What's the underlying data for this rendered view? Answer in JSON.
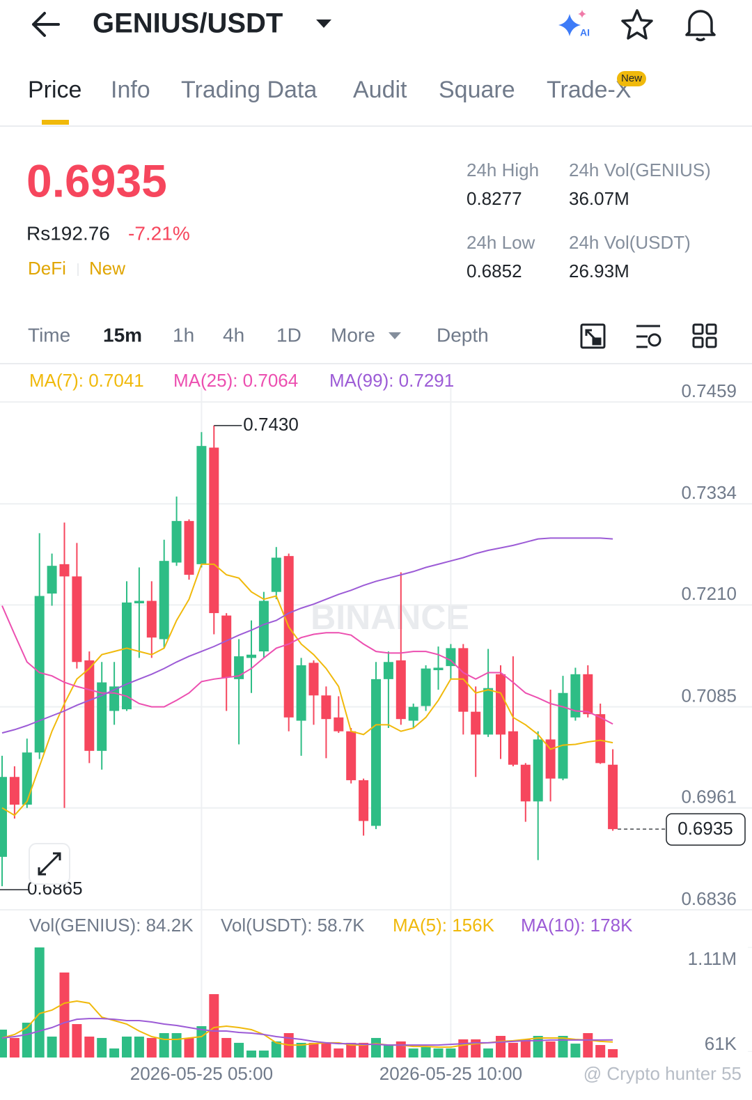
{
  "header": {
    "title": "GENIUS/USDT"
  },
  "tabs": {
    "items": [
      "Price",
      "Info",
      "Trading Data",
      "Audit",
      "Square",
      "Trade-X"
    ],
    "badge": "New"
  },
  "ticker": {
    "price": "0.6935",
    "fiat": "Rs192.76",
    "change": "-7.21%",
    "tags": [
      "DeFi",
      "New"
    ],
    "stats": [
      {
        "label": "24h High",
        "value": "0.8277"
      },
      {
        "label": "24h Vol(GENIUS)",
        "value": "36.07M"
      },
      {
        "label": "24h Low",
        "value": "0.6852"
      },
      {
        "label": "24h Vol(USDT)",
        "value": "26.93M"
      }
    ]
  },
  "intervals": [
    "Time",
    "15m",
    "1h",
    "4h",
    "1D",
    "More",
    "Depth"
  ],
  "chart_data": [
    {
      "type": "candlestick",
      "watermark": "BINANCE",
      "ylim": [
        0.6836,
        0.7459
      ],
      "yticks": [
        0.7459,
        0.7334,
        {
          "value": 0.721,
          "label": "0.7210"
        },
        0.7085,
        0.6961,
        0.6836
      ],
      "grid": true,
      "up_color": "#2ebd85",
      "down_color": "#f6465d",
      "open": [
        0.6901,
        0.6999,
        0.6965,
        0.7029,
        0.7224,
        0.726,
        0.7245,
        0.7142,
        0.7031,
        0.708,
        0.7082,
        0.7212,
        0.7215,
        0.7168,
        0.7262,
        0.7313,
        0.726,
        0.7403,
        0.7197,
        0.7119,
        0.7145,
        0.7153,
        0.7226,
        0.727,
        0.7068,
        0.7139,
        0.7099,
        0.7072,
        0.7055,
        0.6995,
        0.6939,
        0.7119,
        0.7142,
        0.7068,
        0.7086,
        0.713,
        0.7135,
        0.7157,
        0.7079,
        0.7051,
        0.7125,
        0.7055,
        0.7014,
        0.6969,
        0.7045,
        0.6997,
        0.7072,
        0.7125,
        0.7076,
        0.7014
      ],
      "high": [
        0.7025,
        0.7012,
        0.7046,
        0.7298,
        0.7273,
        0.7311,
        0.7286,
        0.7153,
        0.714,
        0.714,
        0.7239,
        0.7256,
        0.7239,
        0.729,
        0.7343,
        0.7315,
        0.7422,
        0.743,
        0.72,
        0.7168,
        0.7191,
        0.7226,
        0.7281,
        0.7273,
        0.7145,
        0.7142,
        0.711,
        0.7098,
        0.7059,
        0.6997,
        0.714,
        0.7153,
        0.725,
        0.7089,
        0.7136,
        0.7159,
        0.7162,
        0.7162,
        0.711,
        0.7156,
        0.7136,
        0.7147,
        0.7016,
        0.7055,
        0.7106,
        0.7123,
        0.7133,
        0.7136,
        0.7089,
        0.7033
      ],
      "low": [
        0.6865,
        0.6948,
        0.6961,
        0.7021,
        0.7209,
        0.6961,
        0.7132,
        0.7016,
        0.7008,
        0.7063,
        0.708,
        0.7145,
        0.7145,
        0.7157,
        0.7258,
        0.7241,
        0.7256,
        0.7174,
        0.708,
        0.7039,
        0.7102,
        0.7145,
        0.7217,
        0.7055,
        0.7025,
        0.7063,
        0.7022,
        0.7053,
        0.6991,
        0.6927,
        0.6935,
        0.7059,
        0.7063,
        0.7059,
        0.708,
        0.7106,
        0.7119,
        0.7051,
        0.6999,
        0.7048,
        0.7021,
        0.7012,
        0.6944,
        0.6897,
        0.6969,
        0.6995,
        0.7068,
        0.7072,
        0.7015,
        0.6933
      ],
      "close": [
        0.6999,
        0.6965,
        0.7029,
        0.7221,
        0.7258,
        0.7245,
        0.714,
        0.7031,
        0.7115,
        0.711,
        0.7213,
        0.7215,
        0.717,
        0.7264,
        0.7313,
        0.7247,
        0.7405,
        0.72,
        0.7121,
        0.7147,
        0.7149,
        0.7215,
        0.7268,
        0.7072,
        0.7136,
        0.7099,
        0.707,
        0.7055,
        0.6995,
        0.6945,
        0.7119,
        0.714,
        0.707,
        0.7085,
        0.7132,
        0.7133,
        0.7157,
        0.7079,
        0.7051,
        0.7108,
        0.7051,
        0.7014,
        0.6969,
        0.7045,
        0.6997,
        0.7102,
        0.7125,
        0.7076,
        0.7016,
        0.6935
      ],
      "series": [
        {
          "name": "MA(7): 0.7041",
          "color": "#f0b90b",
          "values": [
            0.6961,
            0.6952,
            0.6969,
            0.7012,
            0.7055,
            0.7089,
            0.7119,
            0.7132,
            0.7149,
            0.7153,
            0.7157,
            0.7153,
            0.7149,
            0.7157,
            0.7191,
            0.7217,
            0.726,
            0.726,
            0.7247,
            0.7243,
            0.7226,
            0.7217,
            0.7221,
            0.7183,
            0.7162,
            0.7149,
            0.7132,
            0.711,
            0.7055,
            0.7051,
            0.7063,
            0.7063,
            0.7055,
            0.7059,
            0.7072,
            0.7093,
            0.7119,
            0.7119,
            0.7102,
            0.7106,
            0.7102,
            0.7072,
            0.7063,
            0.7051,
            0.7033,
            0.7038,
            0.7039,
            0.7042,
            0.7044,
            0.7041
          ]
        },
        {
          "name": "MA(25): 0.7064",
          "color": "#ec4fb0",
          "values": [
            0.7209,
            0.7174,
            0.714,
            0.7127,
            0.7123,
            0.7115,
            0.711,
            0.7106,
            0.7102,
            0.7102,
            0.7098,
            0.7089,
            0.7085,
            0.7085,
            0.7093,
            0.7102,
            0.7116,
            0.7119,
            0.7121,
            0.7123,
            0.7132,
            0.7145,
            0.7157,
            0.7162,
            0.717,
            0.7174,
            0.7176,
            0.7176,
            0.7173,
            0.7162,
            0.7153,
            0.7151,
            0.7151,
            0.7153,
            0.7153,
            0.7149,
            0.7142,
            0.7127,
            0.7119,
            0.7127,
            0.7127,
            0.7115,
            0.7102,
            0.7096,
            0.7089,
            0.7085,
            0.708,
            0.7079,
            0.7072,
            0.7064
          ]
        },
        {
          "name": "MA(99): 0.7291",
          "color": "#9c5bd6",
          "values": [
            0.7053,
            0.7057,
            0.7062,
            0.7068,
            0.7074,
            0.708,
            0.7087,
            0.7093,
            0.7099,
            0.7106,
            0.7113,
            0.7119,
            0.7125,
            0.7132,
            0.714,
            0.7147,
            0.7153,
            0.7159,
            0.7166,
            0.7173,
            0.7179,
            0.7186,
            0.7191,
            0.72,
            0.7206,
            0.7211,
            0.7217,
            0.7223,
            0.7228,
            0.7234,
            0.7239,
            0.7243,
            0.7247,
            0.7251,
            0.7256,
            0.726,
            0.7264,
            0.7268,
            0.7273,
            0.7277,
            0.728,
            0.7283,
            0.7287,
            0.7291,
            0.7292,
            0.7292,
            0.7292,
            0.7292,
            0.7292,
            0.7291
          ]
        }
      ],
      "max_label": "0.7430",
      "min_label": "0.6865",
      "last_label": "0.6935"
    },
    {
      "type": "bar",
      "ylim": [
        0,
        1110000
      ],
      "yticks": [
        {
          "value": 1110000,
          "label": "1.11M"
        },
        {
          "value": 61000,
          "label": "61K"
        }
      ],
      "categories": [
        null,
        null,
        null,
        null,
        null,
        null,
        null,
        null,
        null,
        null,
        null,
        null,
        null,
        null,
        null,
        null,
        "2026-05-25 05:00",
        null,
        null,
        null,
        null,
        null,
        null,
        null,
        null,
        null,
        null,
        null,
        null,
        null,
        null,
        null,
        null,
        null,
        null,
        null,
        "2026-05-25 10:00",
        null,
        null,
        null,
        null,
        null,
        null,
        null,
        null,
        null,
        null,
        null,
        null,
        null
      ],
      "series": [
        {
          "name": "Vol(GENIUS): 84.2K",
          "values": [
            281000,
            197000,
            351000,
            1110000,
            211000,
            857000,
            337000,
            211000,
            197000,
            91000,
            211000,
            211000,
            197000,
            246000,
            246000,
            197000,
            316000,
            639000,
            197000,
            148000,
            70000,
            70000,
            162000,
            246000,
            148000,
            148000,
            148000,
            91000,
            148000,
            148000,
            197000,
            126000,
            162000,
            91000,
            105000,
            91000,
            91000,
            183000,
            183000,
            91000,
            218000,
            148000,
            183000,
            218000,
            162000,
            218000,
            140000,
            246000,
            126000,
            84200
          ]
        },
        {
          "name": "MA(5): 156K",
          "color": "#f0b90b",
          "values": [
            197000,
            232000,
            302000,
            443000,
            478000,
            548000,
            569000,
            548000,
            407000,
            372000,
            337000,
            267000,
            211000,
            183000,
            183000,
            197000,
            211000,
            302000,
            316000,
            302000,
            281000,
            232000,
            148000,
            126000,
            126000,
            140000,
            148000,
            148000,
            126000,
            126000,
            140000,
            126000,
            126000,
            112000,
            112000,
            105000,
            105000,
            126000,
            140000,
            148000,
            162000,
            169000,
            183000,
            197000,
            197000,
            197000,
            183000,
            176000,
            162000,
            156000
          ]
        },
        {
          "name": "MA(10): 178K",
          "color": "#9c5bd6",
          "values": [
            197000,
            211000,
            232000,
            267000,
            302000,
            351000,
            386000,
            393000,
            393000,
            386000,
            372000,
            372000,
            358000,
            337000,
            323000,
            302000,
            281000,
            267000,
            267000,
            253000,
            246000,
            232000,
            211000,
            197000,
            183000,
            162000,
            148000,
            140000,
            140000,
            133000,
            133000,
            126000,
            126000,
            126000,
            126000,
            126000,
            133000,
            140000,
            148000,
            148000,
            155000,
            162000,
            169000,
            169000,
            176000,
            176000,
            176000,
            176000,
            176000,
            178000
          ]
        }
      ],
      "extra_legend": "Vol(USDT): 58.7K"
    }
  ],
  "footer": {
    "watermark": "@ Crypto hunter 55"
  }
}
